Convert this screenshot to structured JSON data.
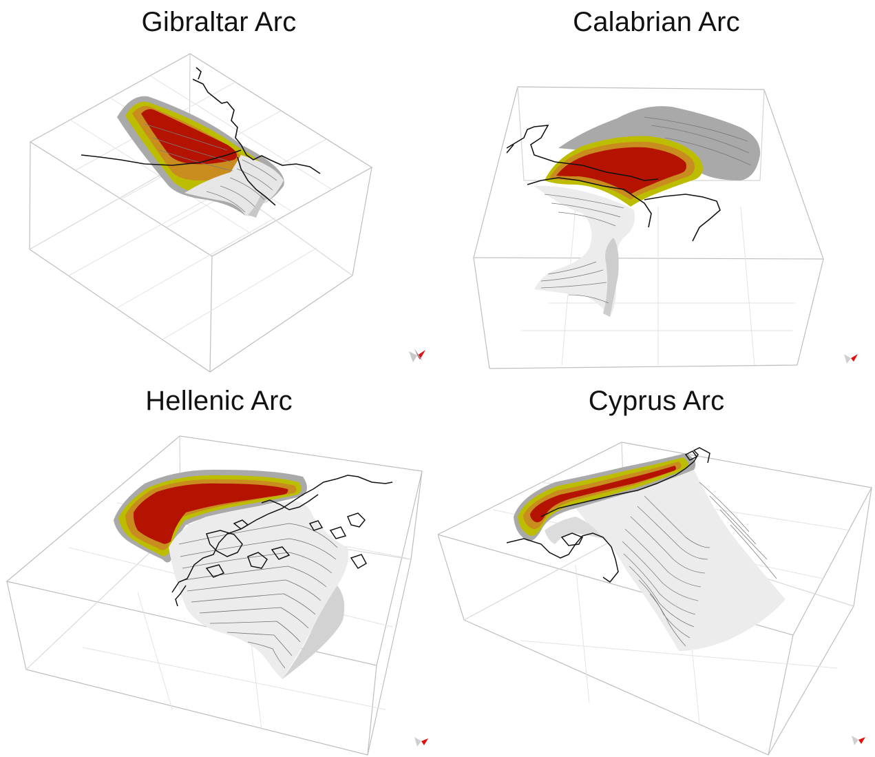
{
  "panels": [
    {
      "title": "Gibraltar Arc"
    },
    {
      "title": "Calabrian Arc"
    },
    {
      "title": "Hellenic Arc"
    },
    {
      "title": "Cyprus Arc"
    }
  ],
  "colors": {
    "zone_core": "#b31300",
    "zone_mid": "#c98c1e",
    "zone_outer": "#bdbd00",
    "zone_edge": "#a8a8a8",
    "slab": "#e9e9e9",
    "coastline": "#111111",
    "box_lines": "#b9b9b9",
    "grid_lines": "#dcdcdc",
    "compass_red": "#e01010"
  }
}
